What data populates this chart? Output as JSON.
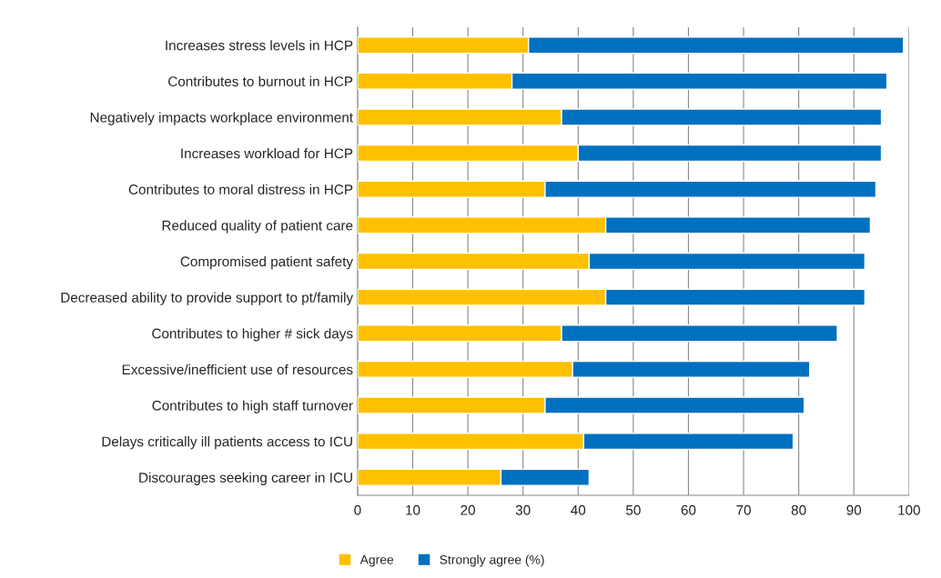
{
  "chart_data": {
    "type": "bar",
    "orientation": "horizontal",
    "stacked": true,
    "categories": [
      "Increases stress levels in HCP",
      "Contributes to burnout in HCP",
      "Negatively impacts workplace environment",
      "Increases workload for HCP",
      "Contributes to moral distress in HCP",
      "Reduced quality of patient care",
      "Compromised patient safety",
      "Decreased ability to provide support to pt/family",
      "Contributes to higher # sick days",
      "Excessive/inefficient use of resources",
      "Contributes to high staff turnover",
      "Delays critically ill patients access to ICU",
      "Discourages seeking career in ICU"
    ],
    "series": [
      {
        "name": "Agree",
        "color": "#ffc000",
        "values": [
          31,
          28,
          37,
          40,
          34,
          45,
          42,
          45,
          37,
          39,
          34,
          41,
          26
        ]
      },
      {
        "name": "Strongly agree (%)",
        "color": "#0070c0",
        "values": [
          68,
          68,
          58,
          55,
          60,
          48,
          50,
          47,
          50,
          43,
          47,
          38,
          16
        ]
      }
    ],
    "xlim": [
      0,
      100
    ],
    "xticks": [
      0,
      10,
      20,
      30,
      40,
      50,
      60,
      70,
      80,
      90,
      100
    ],
    "grid": "x",
    "legend": "bottom"
  }
}
